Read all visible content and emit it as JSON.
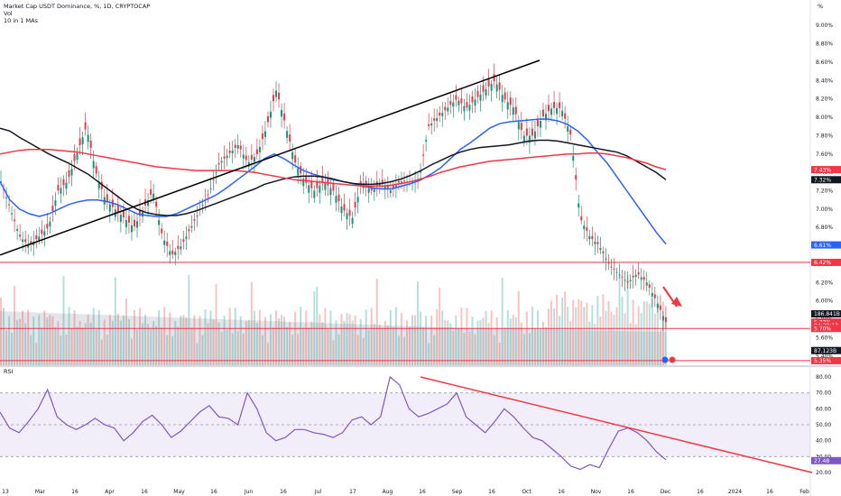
{
  "header": {
    "title": "Market Cap USDT Dominance, %, 1D, CRYPTOCAP",
    "vol_label": "Vol",
    "ma_label": "10 in 1 MAs",
    "rsi_label": "RSI",
    "scale_label": "%"
  },
  "chart_data": {
    "type": "line",
    "title": "Market Cap USDT Dominance, %, 1D, CRYPTOCAP",
    "x_ticks": [
      "13",
      "Mar",
      "16",
      "Apr",
      "16",
      "May",
      "16",
      "Jun",
      "16",
      "Jul",
      "17",
      "Aug",
      "16",
      "Sep",
      "16",
      "Oct",
      "16",
      "Nov",
      "16",
      "Dec",
      "16",
      "2024",
      "16",
      "Feb"
    ],
    "y_ticks": [
      "9.00%",
      "8.80%",
      "8.60%",
      "8.40%",
      "8.20%",
      "8.00%",
      "7.80%",
      "7.60%",
      "7.40%",
      "7.20%",
      "7.00%",
      "6.80%",
      "6.60%",
      "6.40%",
      "6.20%",
      "6.00%",
      "5.80%",
      "5.60%",
      "5.40%"
    ],
    "ylim": [
      5.3,
      9.1
    ],
    "price_tags": [
      {
        "text": "7.43%",
        "color": "#f23645"
      },
      {
        "text": "7.32%",
        "color": "#131722"
      },
      {
        "text": "6.61%",
        "color": "#2962ff"
      },
      {
        "text": "6.42%",
        "color": "#f23645"
      },
      {
        "text": "186.841B",
        "color": "#131722"
      },
      {
        "text": "5.77%",
        "color": "#f23645"
      },
      {
        "text": "04:29:13",
        "color": "#f23645"
      },
      {
        "text": "5.70%",
        "color": "#f23645"
      },
      {
        "text": "87.123B",
        "color": "#131722"
      },
      {
        "text": "5.35%",
        "color": "#f23645"
      }
    ],
    "horizontal_levels": [
      6.42,
      5.7,
      5.35
    ],
    "trendline_price": [
      [
        0,
        6.5
      ],
      [
        598,
        8.62
      ]
    ],
    "series": [
      {
        "name": "MA blue",
        "color": "#2962ff",
        "values": [
          7.3,
          7.1,
          7.0,
          6.95,
          6.92,
          6.95,
          7.0,
          7.05,
          7.08,
          7.1,
          7.1,
          7.08,
          7.05,
          7.0,
          6.95,
          6.93,
          6.92,
          6.92,
          6.95,
          7.0,
          7.05,
          7.1,
          7.15,
          7.22,
          7.3,
          7.38,
          7.46,
          7.55,
          7.6,
          7.55,
          7.48,
          7.42,
          7.38,
          7.35,
          7.32,
          7.3,
          7.28,
          7.25,
          7.23,
          7.22,
          7.22,
          7.25,
          7.28,
          7.32,
          7.38,
          7.45,
          7.55,
          7.65,
          7.72,
          7.8,
          7.88,
          7.93,
          7.95,
          7.96,
          7.97,
          7.98,
          7.98,
          7.96,
          7.92,
          7.85,
          7.75,
          7.62,
          7.5,
          7.35,
          7.2,
          7.05,
          6.9,
          6.75,
          6.62
        ]
      },
      {
        "name": "MA black",
        "color": "#131722",
        "values": [
          7.88,
          7.85,
          7.78,
          7.72,
          7.66,
          7.6,
          7.55,
          7.5,
          7.44,
          7.38,
          7.3,
          7.22,
          7.14,
          7.06,
          7.0,
          6.96,
          6.94,
          6.93,
          6.93,
          6.95,
          6.98,
          7.02,
          7.06,
          7.1,
          7.14,
          7.18,
          7.22,
          7.27,
          7.3,
          7.33,
          7.35,
          7.36,
          7.36,
          7.35,
          7.33,
          7.3,
          7.28,
          7.27,
          7.27,
          7.28,
          7.3,
          7.33,
          7.37,
          7.42,
          7.48,
          7.53,
          7.58,
          7.62,
          7.65,
          7.67,
          7.68,
          7.69,
          7.7,
          7.72,
          7.74,
          7.75,
          7.75,
          7.74,
          7.72,
          7.7,
          7.68,
          7.66,
          7.64,
          7.62,
          7.58,
          7.52,
          7.46,
          7.4,
          7.32
        ]
      },
      {
        "name": "MA red",
        "color": "#f23645",
        "values": [
          7.6,
          7.62,
          7.64,
          7.65,
          7.65,
          7.65,
          7.64,
          7.63,
          7.62,
          7.6,
          7.58,
          7.56,
          7.54,
          7.52,
          7.5,
          7.48,
          7.46,
          7.45,
          7.44,
          7.43,
          7.42,
          7.42,
          7.42,
          7.42,
          7.42,
          7.41,
          7.4,
          7.38,
          7.36,
          7.34,
          7.32,
          7.31,
          7.3,
          7.29,
          7.28,
          7.27,
          7.26,
          7.25,
          7.25,
          7.25,
          7.26,
          7.28,
          7.3,
          7.33,
          7.36,
          7.4,
          7.43,
          7.46,
          7.48,
          7.5,
          7.52,
          7.53,
          7.54,
          7.55,
          7.56,
          7.57,
          7.58,
          7.59,
          7.6,
          7.6,
          7.61,
          7.61,
          7.6,
          7.58,
          7.56,
          7.53,
          7.5,
          7.46,
          7.43
        ]
      },
      {
        "name": "price",
        "color": "#089981",
        "values": [
          7.3,
          7.0,
          6.7,
          6.6,
          6.7,
          6.8,
          7.2,
          7.3,
          7.6,
          7.9,
          7.4,
          7.1,
          7.0,
          6.9,
          6.8,
          7.0,
          7.2,
          6.7,
          6.5,
          6.6,
          6.8,
          7.0,
          7.2,
          7.5,
          7.6,
          7.7,
          7.5,
          7.6,
          7.9,
          8.3,
          7.9,
          7.5,
          7.3,
          7.2,
          7.3,
          7.2,
          7.0,
          6.9,
          7.3,
          7.2,
          7.3,
          7.2,
          7.3,
          7.3,
          7.3,
          7.9,
          8.0,
          8.1,
          8.2,
          8.1,
          8.2,
          8.3,
          8.4,
          8.2,
          8.1,
          7.8,
          7.8,
          8.0,
          8.1,
          8.1,
          7.8,
          6.9,
          6.7,
          6.6,
          6.4,
          6.3,
          6.2,
          6.3,
          6.2,
          6.0,
          5.77
        ]
      },
      {
        "name": "RSI",
        "color": "#7e57c2",
        "values": [
          58,
          48,
          45,
          52,
          60,
          72,
          55,
          50,
          47,
          50,
          54,
          50,
          48,
          40,
          45,
          52,
          56,
          50,
          42,
          46,
          52,
          58,
          62,
          55,
          54,
          50,
          70,
          60,
          45,
          40,
          42,
          47,
          47,
          45,
          44,
          42,
          45,
          53,
          55,
          50,
          55,
          80,
          75,
          60,
          55,
          57,
          60,
          63,
          70,
          55,
          50,
          45,
          52,
          60,
          55,
          48,
          42,
          40,
          35,
          30,
          24,
          22,
          25,
          23,
          35,
          46,
          48,
          45,
          40,
          33,
          28
        ]
      }
    ],
    "rsi_levels": [
      70,
      50,
      30
    ],
    "rsi_ticks": [
      "80.00",
      "70.00",
      "60.00",
      "50.00",
      "40.00",
      "30.00",
      "20.00"
    ],
    "rsi_value_tag": "27.48",
    "rsi_trendline": [
      [
        466,
        80
      ],
      [
        900,
        20
      ]
    ]
  }
}
